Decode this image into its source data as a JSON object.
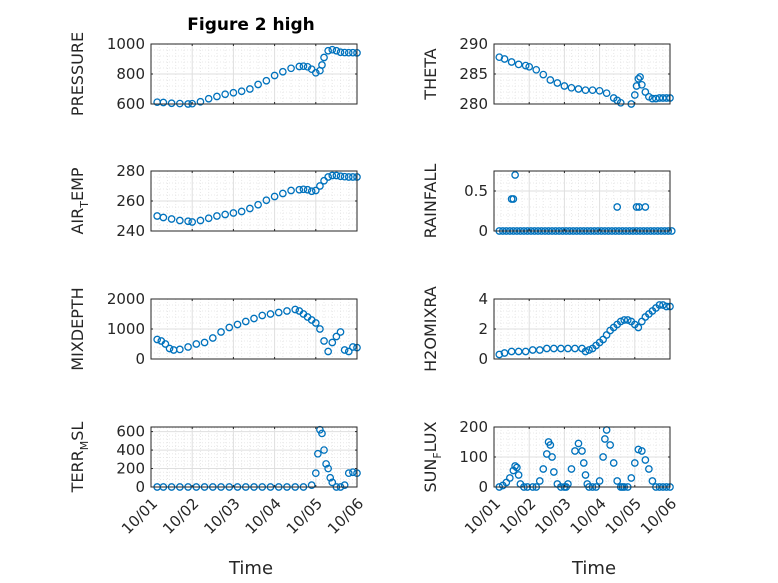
{
  "figure": {
    "title": "Figure 2 high"
  },
  "colors": {
    "marker": "#0072BD",
    "axis": "#262626",
    "grid": "#dfdfdf",
    "minorgrid": "#e8e8e8"
  },
  "chart_data": [
    {
      "type": "scatter",
      "panel": "top-left",
      "ylabel": "PRESSURE",
      "ylabel_parts": [],
      "ylim": [
        600,
        1000
      ],
      "yticks": [
        600,
        800,
        1000
      ],
      "yticklabels": [
        "600",
        "800",
        "1000"
      ],
      "xlim": [
        "10/01",
        "10/06"
      ],
      "xticks": [
        "10/01",
        "10/02",
        "10/03",
        "10/04",
        "10/05",
        "10/06"
      ],
      "show_xticklabels": false,
      "grid": true,
      "minor_grid": true,
      "ytick_positions_frac": [],
      "series": [
        {
          "marker": "circle",
          "x": [
            0.15,
            0.3,
            0.5,
            0.7,
            0.9,
            1.0,
            1.2,
            1.4,
            1.6,
            1.8,
            2.0,
            2.2,
            2.4,
            2.6,
            2.8,
            3.0,
            3.2,
            3.4,
            3.6,
            3.7,
            3.8,
            3.9,
            4.0,
            4.1,
            4.15,
            4.2,
            4.3,
            4.4,
            4.5,
            4.6,
            4.7,
            4.8,
            4.9,
            5.0
          ],
          "y": [
            612,
            610,
            605,
            603,
            600,
            602,
            615,
            635,
            650,
            665,
            675,
            685,
            700,
            730,
            755,
            790,
            815,
            838,
            850,
            852,
            848,
            832,
            808,
            822,
            860,
            910,
            955,
            962,
            955,
            945,
            943,
            942,
            942,
            941
          ]
        }
      ]
    },
    {
      "type": "scatter",
      "panel": "top-right",
      "ylabel": "THETA",
      "ylabel_parts": [],
      "ylim": [
        280,
        290
      ],
      "yticks": [
        280,
        285,
        290
      ],
      "yticklabels": [
        "280",
        "285",
        "290"
      ],
      "xlim": [
        "10/01",
        "10/06"
      ],
      "xticks": [
        "10/01",
        "10/02",
        "10/03",
        "10/04",
        "10/05",
        "10/06"
      ],
      "show_xticklabels": false,
      "grid": true,
      "minor_grid": true,
      "ytick_positions_frac": [],
      "series": [
        {
          "marker": "circle",
          "x": [
            0.15,
            0.3,
            0.5,
            0.7,
            0.9,
            1.0,
            1.2,
            1.4,
            1.6,
            1.8,
            2.0,
            2.2,
            2.4,
            2.6,
            2.8,
            3.0,
            3.2,
            3.4,
            3.5,
            3.6,
            3.7,
            3.8,
            3.9,
            4.0,
            4.05,
            4.1,
            4.15,
            4.2,
            4.3,
            4.4,
            4.5,
            4.6,
            4.7,
            4.8,
            4.9,
            5.0
          ],
          "y": [
            287.8,
            287.5,
            287.0,
            286.6,
            286.4,
            286.2,
            285.7,
            284.9,
            284.0,
            283.5,
            283.0,
            282.7,
            282.5,
            282.3,
            282.3,
            282.2,
            281.8,
            281.0,
            280.6,
            280.2,
            279.9,
            279.8,
            280.0,
            281.5,
            283.0,
            284.2,
            284.5,
            283.2,
            282.0,
            281.2,
            280.9,
            280.9,
            281.0,
            281.0,
            281.0,
            281.0
          ]
        }
      ]
    },
    {
      "type": "scatter",
      "panel": "row2-left",
      "ylabel": "",
      "ylabel_parts": [
        "AIR",
        "T",
        "EMP"
      ],
      "ylim": [
        240,
        280
      ],
      "yticks": [
        240,
        260,
        280
      ],
      "yticklabels": [
        "240",
        "260",
        "280"
      ],
      "xlim": [
        "10/01",
        "10/06"
      ],
      "xticks": [
        "10/01",
        "10/02",
        "10/03",
        "10/04",
        "10/05",
        "10/06"
      ],
      "show_xticklabels": false,
      "grid": true,
      "minor_grid": true,
      "ytick_positions_frac": [],
      "series": [
        {
          "marker": "circle",
          "x": [
            0.15,
            0.3,
            0.5,
            0.7,
            0.9,
            1.0,
            1.2,
            1.4,
            1.6,
            1.8,
            2.0,
            2.2,
            2.4,
            2.6,
            2.8,
            3.0,
            3.2,
            3.4,
            3.6,
            3.7,
            3.8,
            3.9,
            4.0,
            4.1,
            4.2,
            4.3,
            4.4,
            4.5,
            4.6,
            4.7,
            4.8,
            4.9,
            5.0
          ],
          "y": [
            250,
            249,
            248,
            247,
            246.5,
            246,
            247,
            248.5,
            250,
            251,
            252,
            253,
            255,
            257.5,
            260.5,
            263,
            265,
            267,
            267.5,
            267.8,
            267.5,
            266.5,
            267,
            270,
            273.5,
            276,
            277,
            277,
            276.5,
            276.2,
            276,
            276,
            276
          ]
        }
      ]
    },
    {
      "type": "scatter",
      "panel": "row2-right",
      "ylabel": "RAINFALL",
      "ylabel_parts": [],
      "ylim": [
        0,
        0.75
      ],
      "yticks": [
        0,
        0.5
      ],
      "yticklabels": [
        "0",
        "0.5"
      ],
      "xlim": [
        "10/01",
        "10/06"
      ],
      "xticks": [
        "10/01",
        "10/02",
        "10/03",
        "10/04",
        "10/05",
        "10/06"
      ],
      "show_xticklabels": false,
      "grid": true,
      "minor_grid": true,
      "ytick_positions_frac": [],
      "series": [
        {
          "marker": "circle",
          "x": [
            0.15,
            0.25,
            0.35,
            0.45,
            0.55,
            0.65,
            0.75,
            0.85,
            0.95,
            1.05,
            1.15,
            1.25,
            1.35,
            1.45,
            1.55,
            1.65,
            1.75,
            1.85,
            1.95,
            2.05,
            2.15,
            2.25,
            2.35,
            2.45,
            2.55,
            2.65,
            2.75,
            2.85,
            2.95,
            3.05,
            3.15,
            3.25,
            3.35,
            3.45,
            3.55,
            3.65,
            3.75,
            3.85,
            3.95,
            4.05,
            4.15,
            4.25,
            4.35,
            4.45,
            4.55,
            4.65,
            4.75,
            4.85,
            4.95,
            5.05,
            0.5,
            0.55,
            0.6,
            3.5,
            4.05,
            4.12,
            4.3
          ],
          "y": [
            0,
            0,
            0,
            0,
            0,
            0,
            0,
            0,
            0,
            0,
            0,
            0,
            0,
            0,
            0,
            0,
            0,
            0,
            0,
            0,
            0,
            0,
            0,
            0,
            0,
            0,
            0,
            0,
            0,
            0,
            0,
            0,
            0,
            0,
            0,
            0,
            0,
            0,
            0,
            0,
            0,
            0,
            0,
            0,
            0,
            0,
            0,
            0,
            0,
            0,
            0.4,
            0.4,
            0.7,
            0.3,
            0.3,
            0.3,
            0.3
          ]
        }
      ]
    },
    {
      "type": "scatter",
      "panel": "row3-left",
      "ylabel": "MIXDEPTH",
      "ylabel_parts": [],
      "ylim": [
        0,
        2000
      ],
      "yticks": [
        0,
        1000,
        2000
      ],
      "yticklabels": [
        "0",
        "1000",
        "2000"
      ],
      "xlim": [
        "10/01",
        "10/06"
      ],
      "xticks": [
        "10/01",
        "10/02",
        "10/03",
        "10/04",
        "10/05",
        "10/06"
      ],
      "show_xticklabels": false,
      "grid": true,
      "minor_grid": true,
      "ytick_positions_frac": [],
      "series": [
        {
          "marker": "circle",
          "x": [
            0.15,
            0.25,
            0.35,
            0.45,
            0.55,
            0.7,
            0.9,
            1.1,
            1.3,
            1.5,
            1.7,
            1.9,
            2.1,
            2.3,
            2.5,
            2.7,
            2.9,
            3.1,
            3.3,
            3.5,
            3.6,
            3.7,
            3.8,
            3.9,
            4.0,
            4.1,
            4.2,
            4.3,
            4.4,
            4.5,
            4.6,
            4.7,
            4.8,
            4.9,
            5.0
          ],
          "y": [
            650,
            600,
            500,
            350,
            300,
            320,
            400,
            500,
            550,
            700,
            900,
            1050,
            1150,
            1250,
            1350,
            1450,
            1500,
            1550,
            1600,
            1650,
            1600,
            1500,
            1400,
            1300,
            1200,
            1000,
            600,
            250,
            550,
            750,
            900,
            300,
            250,
            400,
            380
          ]
        }
      ]
    },
    {
      "type": "scatter",
      "panel": "row3-right",
      "ylabel": "H2OMIXRA",
      "ylabel_parts": [],
      "ylim": [
        0,
        4
      ],
      "yticks": [
        0,
        2,
        4
      ],
      "yticklabels": [
        "0",
        "2",
        "4"
      ],
      "xlim": [
        "10/01",
        "10/06"
      ],
      "xticks": [
        "10/01",
        "10/02",
        "10/03",
        "10/04",
        "10/05",
        "10/06"
      ],
      "show_xticklabels": false,
      "grid": true,
      "minor_grid": true,
      "ytick_positions_frac": [],
      "series": [
        {
          "marker": "circle",
          "x": [
            0.15,
            0.3,
            0.5,
            0.7,
            0.9,
            1.1,
            1.3,
            1.5,
            1.7,
            1.9,
            2.1,
            2.3,
            2.5,
            2.6,
            2.7,
            2.8,
            2.9,
            3.0,
            3.1,
            3.2,
            3.3,
            3.4,
            3.5,
            3.6,
            3.7,
            3.8,
            3.9,
            4.0,
            4.1,
            4.2,
            4.3,
            4.4,
            4.5,
            4.6,
            4.7,
            4.8,
            4.9,
            5.0
          ],
          "y": [
            0.3,
            0.4,
            0.5,
            0.5,
            0.5,
            0.6,
            0.6,
            0.7,
            0.7,
            0.7,
            0.7,
            0.7,
            0.7,
            0.5,
            0.6,
            0.7,
            0.9,
            1.1,
            1.3,
            1.6,
            1.9,
            2.1,
            2.3,
            2.5,
            2.6,
            2.6,
            2.5,
            2.3,
            2.1,
            2.5,
            2.8,
            3.0,
            3.2,
            3.4,
            3.6,
            3.6,
            3.5,
            3.5
          ]
        }
      ]
    },
    {
      "type": "scatter",
      "panel": "bottom-left",
      "ylabel": "",
      "ylabel_parts": [
        "TERR",
        "M",
        "SL"
      ],
      "ylim": [
        0,
        650
      ],
      "yticks": [
        0,
        200,
        400,
        600
      ],
      "yticklabels": [
        "0",
        "200",
        "400",
        "600"
      ],
      "xlim": [
        "10/01",
        "10/06"
      ],
      "xticks": [
        "10/01",
        "10/02",
        "10/03",
        "10/04",
        "10/05",
        "10/06"
      ],
      "show_xticklabels": true,
      "grid": true,
      "minor_grid": true,
      "ytick_positions_frac": [],
      "series": [
        {
          "marker": "circle",
          "x": [
            0.15,
            0.3,
            0.5,
            0.7,
            0.9,
            1.1,
            1.3,
            1.5,
            1.7,
            1.9,
            2.1,
            2.3,
            2.5,
            2.7,
            2.9,
            3.1,
            3.3,
            3.5,
            3.7,
            3.9,
            4.0,
            4.05,
            4.1,
            4.15,
            4.2,
            4.25,
            4.3,
            4.35,
            4.4,
            4.5,
            4.6,
            4.7,
            4.8,
            4.9,
            5.0
          ],
          "y": [
            0,
            0,
            0,
            0,
            0,
            0,
            0,
            0,
            0,
            0,
            0,
            0,
            0,
            0,
            0,
            0,
            0,
            0,
            0,
            20,
            150,
            360,
            620,
            580,
            400,
            250,
            200,
            100,
            50,
            0,
            0,
            20,
            150,
            160,
            150
          ]
        }
      ]
    },
    {
      "type": "scatter",
      "panel": "bottom-right",
      "ylabel": "",
      "ylabel_parts": [
        "SUN",
        "F",
        "LUX"
      ],
      "ylim": [
        0,
        200
      ],
      "yticks": [
        0,
        100,
        200
      ],
      "yticklabels": [
        "0",
        "100",
        "200"
      ],
      "xlim": [
        "10/01",
        "10/06"
      ],
      "xticks": [
        "10/01",
        "10/02",
        "10/03",
        "10/04",
        "10/05",
        "10/06"
      ],
      "show_xticklabels": true,
      "grid": true,
      "minor_grid": true,
      "ytick_positions_frac": [],
      "series": [
        {
          "marker": "circle",
          "x": [
            0.15,
            0.25,
            0.35,
            0.45,
            0.55,
            0.6,
            0.65,
            0.7,
            0.75,
            0.85,
            0.95,
            1.1,
            1.2,
            1.3,
            1.4,
            1.5,
            1.55,
            1.6,
            1.65,
            1.7,
            1.8,
            1.9,
            2.0,
            2.05,
            2.1,
            2.2,
            2.3,
            2.4,
            2.5,
            2.55,
            2.6,
            2.65,
            2.7,
            2.8,
            2.9,
            3.0,
            3.1,
            3.15,
            3.2,
            3.3,
            3.4,
            3.5,
            3.6,
            3.65,
            3.7,
            3.8,
            3.9,
            4.0,
            4.1,
            4.2,
            4.3,
            4.4,
            4.5,
            4.6,
            4.7,
            4.8,
            4.9,
            5.0
          ],
          "y": [
            0,
            5,
            15,
            30,
            55,
            70,
            65,
            40,
            10,
            0,
            0,
            0,
            0,
            20,
            60,
            110,
            150,
            140,
            100,
            50,
            10,
            0,
            0,
            0,
            10,
            60,
            120,
            145,
            120,
            80,
            40,
            10,
            0,
            0,
            0,
            20,
            100,
            160,
            190,
            140,
            80,
            20,
            0,
            0,
            0,
            0,
            30,
            80,
            125,
            120,
            90,
            60,
            20,
            0,
            0,
            0,
            0,
            0
          ]
        }
      ]
    }
  ],
  "xaxis": {
    "label": "Time",
    "ticklabels": [
      "10/01",
      "10/02",
      "10/03",
      "10/04",
      "10/05",
      "10/06"
    ]
  }
}
